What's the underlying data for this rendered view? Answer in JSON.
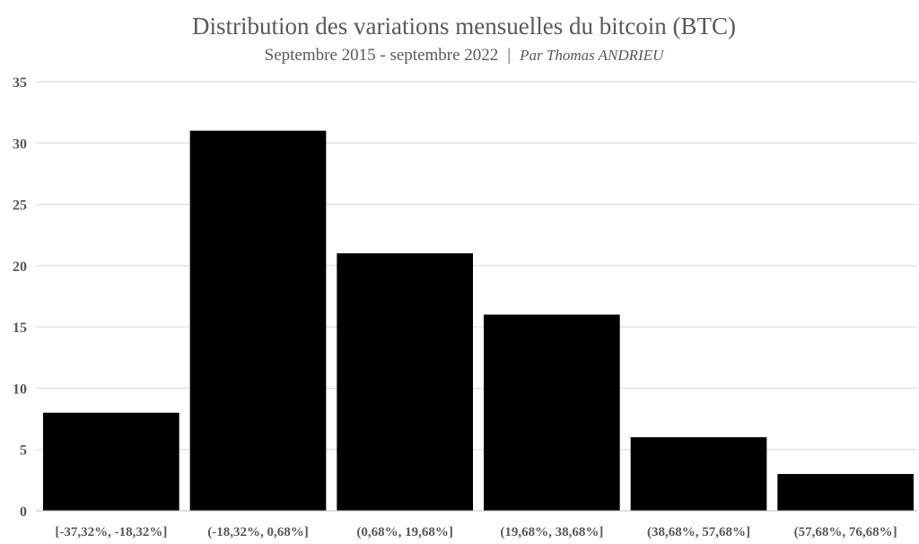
{
  "chart_data": {
    "type": "bar",
    "title": "Distribution des variations mensuelles du bitcoin (BTC)",
    "subtitle_period": "Septembre 2015 - septembre 2022",
    "subtitle_separator": "|",
    "subtitle_credit": "Par Thomas ANDRIEU",
    "categories": [
      "[-37,32%, -18,32%]",
      "(-18,32%, 0,68%]",
      "(0,68%, 19,68%]",
      "(19,68%, 38,68%]",
      "(38,68%, 57,68%]",
      "(57,68%, 76,68%]"
    ],
    "values": [
      8,
      31,
      21,
      16,
      6,
      3
    ],
    "ylim": [
      0,
      35
    ],
    "yticks": [
      0,
      5,
      10,
      15,
      20,
      25,
      30,
      35
    ],
    "grid": true,
    "bar_color": "#000000",
    "text_color": "#595959"
  }
}
